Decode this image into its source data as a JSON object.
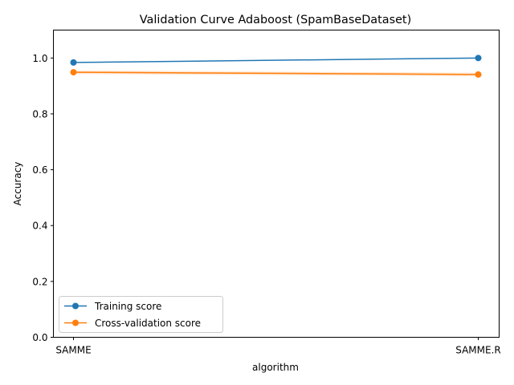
{
  "chart_data": {
    "type": "line",
    "title": "Validation Curve Adaboost (SpamBaseDataset)",
    "xlabel": "algorithm",
    "ylabel": "Accuracy",
    "categories": [
      "SAMME",
      "SAMME.R"
    ],
    "ylim": [
      0,
      1.1
    ],
    "yticks": [
      "0.0",
      "0.2",
      "0.4",
      "0.6",
      "0.8",
      "1.0"
    ],
    "grid": false,
    "legend_position": "lower-left",
    "series": [
      {
        "name": "Training score",
        "values": [
          0.984,
          1.0
        ],
        "band": [
          [
            0.983,
            0.985
          ],
          [
            1.0,
            1.0
          ]
        ],
        "color": "#1f77b4"
      },
      {
        "name": "Cross-validation score",
        "values": [
          0.949,
          0.941
        ],
        "band": [
          [
            0.943,
            0.955
          ],
          [
            0.935,
            0.947
          ]
        ],
        "color": "#ff7f0e"
      }
    ]
  }
}
